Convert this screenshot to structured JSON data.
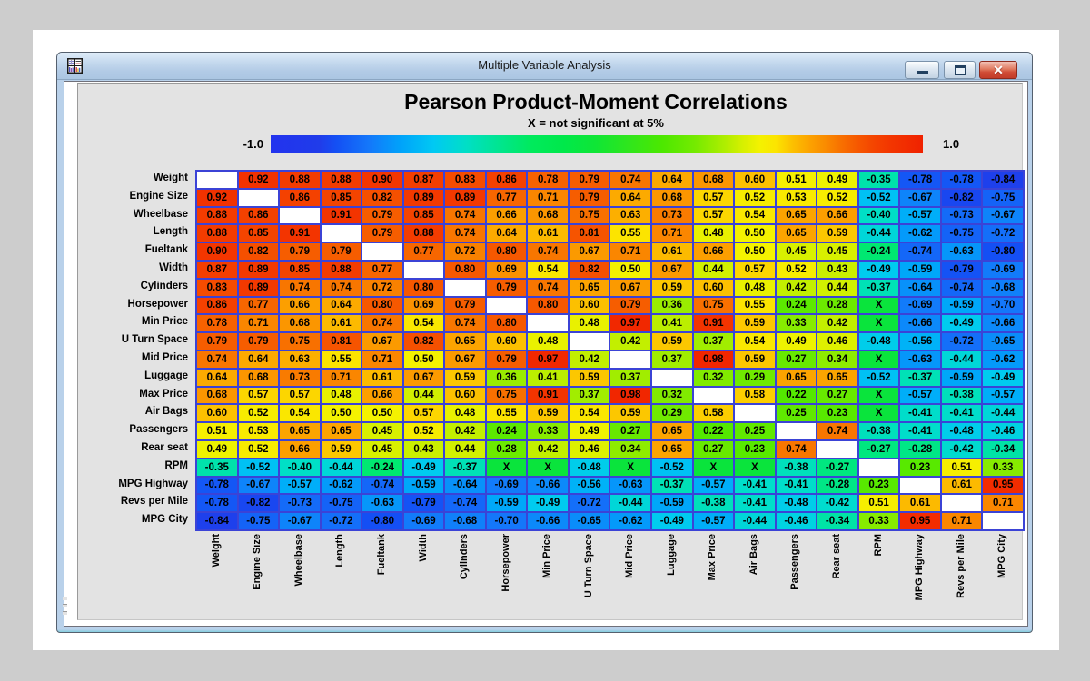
{
  "window": {
    "title": "Multiple Variable Analysis"
  },
  "chart_data": {
    "type": "heatmap",
    "title": "Pearson Product-Moment Correlations",
    "subtitle": "X = not significant at 5%",
    "not_significant_marker": "X",
    "colorbar": {
      "min_label": "-1.0",
      "max_label": "1.0",
      "range": [
        -1,
        1
      ]
    },
    "variables": [
      "Weight",
      "Engine Size",
      "Wheelbase",
      "Length",
      "Fueltank",
      "Width",
      "Cylinders",
      "Horsepower",
      "Min Price",
      "U Turn Space",
      "Mid Price",
      "Luggage",
      "Max Price",
      "Air Bags",
      "Passengers",
      "Rear seat",
      "RPM",
      "MPG Highway",
      "Revs per Mile",
      "MPG City"
    ],
    "matrix": [
      [
        null,
        0.92,
        0.88,
        0.88,
        0.9,
        0.87,
        0.83,
        0.86,
        0.78,
        0.79,
        0.74,
        0.64,
        0.68,
        0.6,
        0.51,
        0.49,
        -0.35,
        -0.78,
        -0.78,
        -0.84
      ],
      [
        0.92,
        null,
        0.86,
        0.85,
        0.82,
        0.89,
        0.89,
        0.77,
        0.71,
        0.79,
        0.64,
        0.68,
        0.57,
        0.52,
        0.53,
        0.52,
        -0.52,
        -0.67,
        -0.82,
        -0.75
      ],
      [
        0.88,
        0.86,
        null,
        0.91,
        0.79,
        0.85,
        0.74,
        0.66,
        0.68,
        0.75,
        0.63,
        0.73,
        0.57,
        0.54,
        0.65,
        0.66,
        -0.4,
        -0.57,
        -0.73,
        -0.67
      ],
      [
        0.88,
        0.85,
        0.91,
        null,
        0.79,
        0.88,
        0.74,
        0.64,
        0.61,
        0.81,
        0.55,
        0.71,
        0.48,
        0.5,
        0.65,
        0.59,
        -0.44,
        -0.62,
        -0.75,
        -0.72
      ],
      [
        0.9,
        0.82,
        0.79,
        0.79,
        null,
        0.77,
        0.72,
        0.8,
        0.74,
        0.67,
        0.71,
        0.61,
        0.66,
        0.5,
        0.45,
        0.45,
        -0.24,
        -0.74,
        -0.63,
        -0.8
      ],
      [
        0.87,
        0.89,
        0.85,
        0.88,
        0.77,
        null,
        0.8,
        0.69,
        0.54,
        0.82,
        0.5,
        0.67,
        0.44,
        0.57,
        0.52,
        0.43,
        -0.49,
        -0.59,
        -0.79,
        -0.69
      ],
      [
        0.83,
        0.89,
        0.74,
        0.74,
        0.72,
        0.8,
        null,
        0.79,
        0.74,
        0.65,
        0.67,
        0.59,
        0.6,
        0.48,
        0.42,
        0.44,
        -0.37,
        -0.64,
        -0.74,
        -0.68
      ],
      [
        0.86,
        0.77,
        0.66,
        0.64,
        0.8,
        0.69,
        0.79,
        null,
        0.8,
        0.6,
        0.79,
        0.36,
        0.75,
        0.55,
        0.24,
        0.28,
        "X",
        -0.69,
        -0.59,
        -0.7
      ],
      [
        0.78,
        0.71,
        0.68,
        0.61,
        0.74,
        0.54,
        0.74,
        0.8,
        null,
        0.48,
        0.97,
        0.41,
        0.91,
        0.59,
        0.33,
        0.42,
        "X",
        -0.66,
        -0.49,
        -0.66
      ],
      [
        0.79,
        0.79,
        0.75,
        0.81,
        0.67,
        0.82,
        0.65,
        0.6,
        0.48,
        null,
        0.42,
        0.59,
        0.37,
        0.54,
        0.49,
        0.46,
        -0.48,
        -0.56,
        -0.72,
        -0.65
      ],
      [
        0.74,
        0.64,
        0.63,
        0.55,
        0.71,
        0.5,
        0.67,
        0.79,
        0.97,
        0.42,
        null,
        0.37,
        0.98,
        0.59,
        0.27,
        0.34,
        "X",
        -0.63,
        -0.44,
        -0.62
      ],
      [
        0.64,
        0.68,
        0.73,
        0.71,
        0.61,
        0.67,
        0.59,
        0.36,
        0.41,
        0.59,
        0.37,
        null,
        0.32,
        0.29,
        0.65,
        0.65,
        -0.52,
        -0.37,
        -0.59,
        -0.49
      ],
      [
        0.68,
        0.57,
        0.57,
        0.48,
        0.66,
        0.44,
        0.6,
        0.75,
        0.91,
        0.37,
        0.98,
        0.32,
        null,
        0.58,
        0.22,
        0.27,
        "X",
        -0.57,
        -0.38,
        -0.57
      ],
      [
        0.6,
        0.52,
        0.54,
        0.5,
        0.5,
        0.57,
        0.48,
        0.55,
        0.59,
        0.54,
        0.59,
        0.29,
        0.58,
        null,
        0.25,
        0.23,
        "X",
        -0.41,
        -0.41,
        -0.44
      ],
      [
        0.51,
        0.53,
        0.65,
        0.65,
        0.45,
        0.52,
        0.42,
        0.24,
        0.33,
        0.49,
        0.27,
        0.65,
        0.22,
        0.25,
        null,
        0.74,
        -0.38,
        -0.41,
        -0.48,
        -0.46
      ],
      [
        0.49,
        0.52,
        0.66,
        0.59,
        0.45,
        0.43,
        0.44,
        0.28,
        0.42,
        0.46,
        0.34,
        0.65,
        0.27,
        0.23,
        0.74,
        null,
        -0.27,
        -0.28,
        -0.42,
        -0.34
      ],
      [
        -0.35,
        -0.52,
        -0.4,
        -0.44,
        -0.24,
        -0.49,
        -0.37,
        "X",
        "X",
        -0.48,
        "X",
        -0.52,
        "X",
        "X",
        -0.38,
        -0.27,
        null,
        0.23,
        0.51,
        0.33
      ],
      [
        -0.78,
        -0.67,
        -0.57,
        -0.62,
        -0.74,
        -0.59,
        -0.64,
        -0.69,
        -0.66,
        -0.56,
        -0.63,
        -0.37,
        -0.57,
        -0.41,
        -0.41,
        -0.28,
        0.23,
        null,
        0.61,
        0.95
      ],
      [
        -0.78,
        -0.82,
        -0.73,
        -0.75,
        -0.63,
        -0.79,
        -0.74,
        -0.59,
        -0.49,
        -0.72,
        -0.44,
        -0.59,
        -0.38,
        -0.41,
        -0.48,
        -0.42,
        0.51,
        0.61,
        null,
        0.71
      ],
      [
        -0.84,
        -0.75,
        -0.67,
        -0.72,
        -0.8,
        -0.69,
        -0.68,
        -0.7,
        -0.66,
        -0.65,
        -0.62,
        -0.49,
        -0.57,
        -0.44,
        -0.46,
        -0.34,
        0.33,
        0.95,
        0.71,
        null
      ]
    ]
  }
}
